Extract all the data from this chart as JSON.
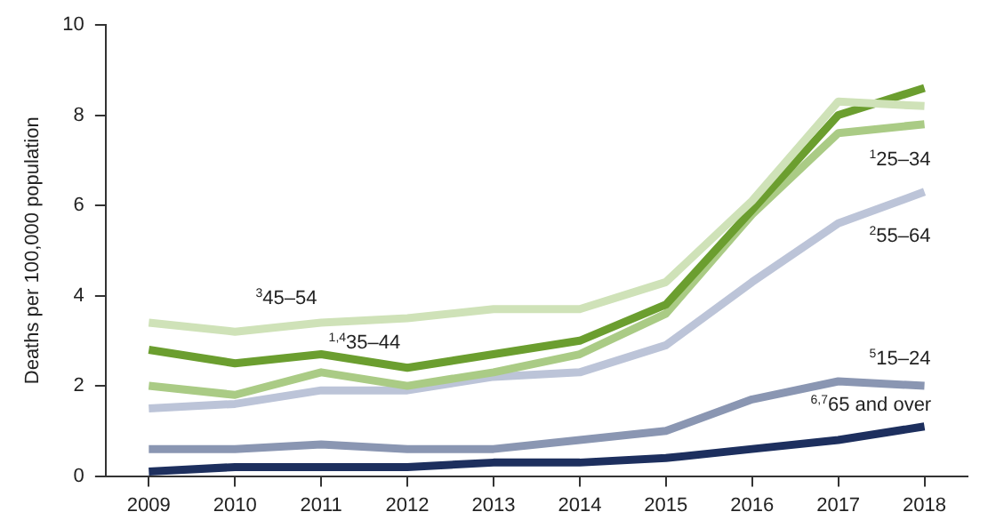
{
  "chart_data": {
    "type": "line",
    "ylabel": "Deaths per 100,000 population",
    "categories": [
      "2009",
      "2010",
      "2011",
      "2012",
      "2013",
      "2014",
      "2015",
      "2016",
      "2017",
      "2018"
    ],
    "ylim": [
      0,
      10
    ],
    "yticks": [
      0,
      2,
      4,
      6,
      8,
      10
    ],
    "grid": false,
    "legend": false,
    "marker": "none",
    "line_style": "solid",
    "series": [
      {
        "name": "$^{3}$45–54",
        "color": "#cfe2b8",
        "values": [
          3.4,
          3.2,
          3.4,
          3.5,
          3.7,
          3.7,
          4.3,
          6.1,
          8.3,
          8.2
        ]
      },
      {
        "name": "$^{1,4}$35–44",
        "color": "#6b9e2f",
        "values": [
          2.8,
          2.5,
          2.7,
          2.4,
          2.7,
          3.0,
          3.8,
          5.9,
          8.0,
          8.6
        ]
      },
      {
        "name": "$^{1}$25–34",
        "color": "#aacb85",
        "values": [
          2.0,
          1.8,
          2.3,
          2.0,
          2.3,
          2.7,
          3.6,
          5.8,
          7.6,
          7.8
        ]
      },
      {
        "name": "$^{2}$55–64",
        "color": "#bcc4d8",
        "values": [
          1.5,
          1.6,
          1.9,
          1.9,
          2.2,
          2.3,
          2.9,
          4.3,
          5.6,
          6.3
        ]
      },
      {
        "name": "$^{5}$15–24",
        "color": "#8a96b2",
        "values": [
          0.6,
          0.6,
          0.7,
          0.6,
          0.6,
          0.8,
          1.0,
          1.7,
          2.1,
          2.0
        ]
      },
      {
        "name": "$^{6,7}$65 and over",
        "color": "#1d2f5e",
        "values": [
          0.1,
          0.2,
          0.2,
          0.2,
          0.3,
          0.3,
          0.4,
          0.6,
          0.8,
          1.1
        ]
      }
    ]
  }
}
